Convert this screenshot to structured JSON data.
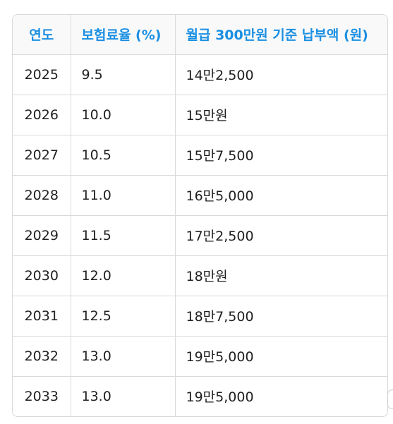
{
  "table": {
    "headers": {
      "year": "연도",
      "rate": "보험료율 (%)",
      "payment": "월급 300만원 기준 납부액 (원)"
    },
    "rows": [
      {
        "year": "2025",
        "rate": "9.5",
        "payment": "14만2,500"
      },
      {
        "year": "2026",
        "rate": "10.0",
        "payment": "15만원"
      },
      {
        "year": "2027",
        "rate": "10.5",
        "payment": "15만7,500"
      },
      {
        "year": "2028",
        "rate": "11.0",
        "payment": "16만5,000"
      },
      {
        "year": "2029",
        "rate": "11.5",
        "payment": "17만2,500"
      },
      {
        "year": "2030",
        "rate": "12.0",
        "payment": "18만원"
      },
      {
        "year": "2031",
        "rate": "12.5",
        "payment": "18만7,500"
      },
      {
        "year": "2032",
        "rate": "13.0",
        "payment": "19만5,000"
      },
      {
        "year": "2033",
        "rate": "13.0",
        "payment": "19만5,000"
      }
    ]
  }
}
